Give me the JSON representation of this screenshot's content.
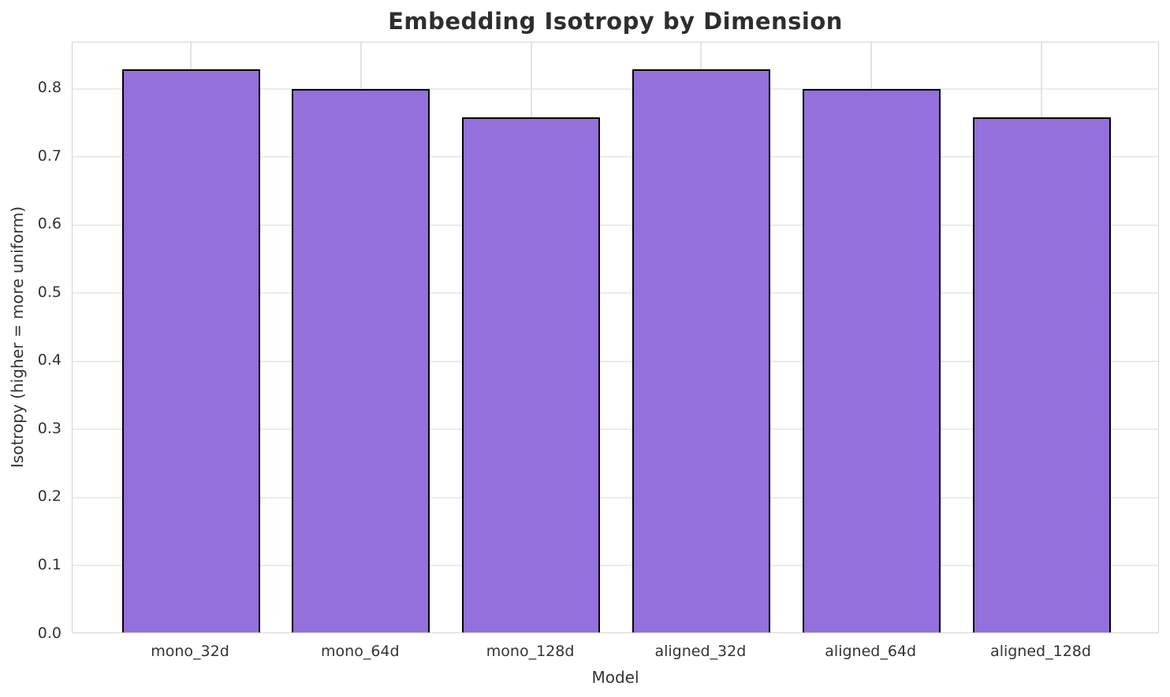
{
  "chart_data": {
    "type": "bar",
    "title": "Embedding Isotropy by Dimension",
    "xlabel": "Model",
    "ylabel": "Isotropy (higher = more uniform)",
    "categories": [
      "mono_32d",
      "mono_64d",
      "mono_128d",
      "aligned_32d",
      "aligned_64d",
      "aligned_128d"
    ],
    "values": [
      0.826,
      0.798,
      0.756,
      0.826,
      0.798,
      0.756
    ],
    "yticks": [
      0.0,
      0.1,
      0.2,
      0.3,
      0.4,
      0.5,
      0.6,
      0.7,
      0.8
    ],
    "ylim": [
      0,
      0.868
    ],
    "grid": "on",
    "legend": "none",
    "colors": {
      "bar_fill": "#9370DB",
      "bar_edge": "#000000",
      "grid": "#ebebeb",
      "spine": "#d4d4d4",
      "title_text": "#2e2e2e",
      "tick_text": "#333333"
    }
  }
}
